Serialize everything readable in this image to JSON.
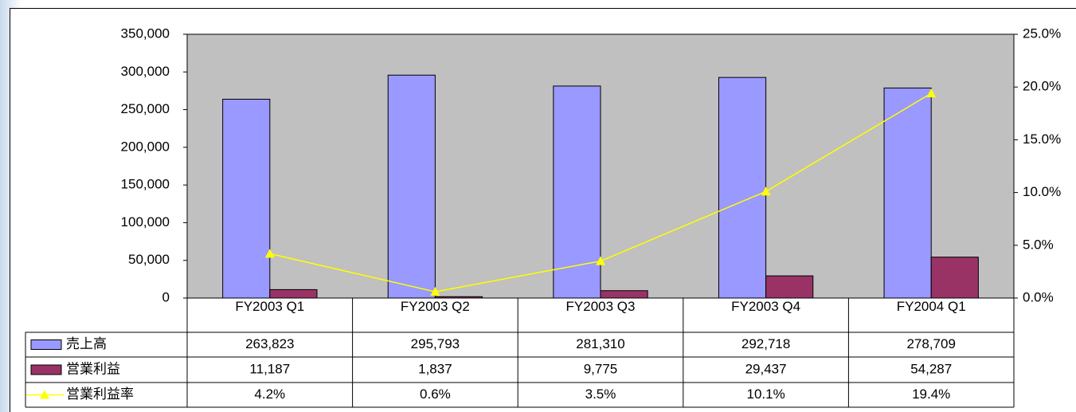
{
  "chart_data": {
    "type": "bar_line",
    "categories": [
      "FY2003 Q1",
      "FY2003 Q2",
      "FY2003 Q3",
      "FY2003 Q4",
      "FY2004 Q1"
    ],
    "series": [
      {
        "name": "売上高",
        "color": "#9999ff",
        "type": "bar",
        "values": [
          263823,
          295793,
          281310,
          292718,
          278709
        ],
        "value_labels": [
          "263,823",
          "295,793",
          "281,310",
          "292,718",
          "278,709"
        ]
      },
      {
        "name": "営業利益",
        "color": "#993366",
        "type": "bar",
        "values": [
          11187,
          1837,
          9775,
          29437,
          54287
        ],
        "value_labels": [
          "11,187",
          "1,837",
          "9,775",
          "29,437",
          "54,287"
        ]
      },
      {
        "name": "営業利益率",
        "color": "#ffff00",
        "type": "line",
        "axis": "y2",
        "values": [
          4.2,
          0.6,
          3.5,
          10.1,
          19.4
        ],
        "value_labels": [
          "4.2%",
          "0.6%",
          "3.5%",
          "10.1%",
          "19.4%"
        ]
      }
    ],
    "ylim": [
      0,
      350000
    ],
    "yticks": [
      0,
      {
        "value": 50000,
        "label": "50,000"
      },
      {
        "value": 100000,
        "label": "100,000"
      },
      {
        "value": 150000,
        "label": "150,000"
      },
      {
        "value": 200000,
        "label": "200,000"
      },
      {
        "value": 250000,
        "label": "250,000"
      },
      {
        "value": 300000,
        "label": "300,000"
      },
      {
        "value": 350000,
        "label": "350,000"
      }
    ],
    "y2lim": [
      0,
      25
    ],
    "y2ticks": [
      {
        "value": 0,
        "label": "0.0%"
      },
      {
        "value": 5,
        "label": "5.0%"
      },
      {
        "value": 10,
        "label": "10.0%"
      },
      {
        "value": 15,
        "label": "15.0%"
      },
      {
        "value": 20,
        "label": "20.0%"
      },
      {
        "value": 25,
        "label": "25.0%"
      }
    ],
    "grid": false,
    "plot_background": "#c0c0c0"
  }
}
